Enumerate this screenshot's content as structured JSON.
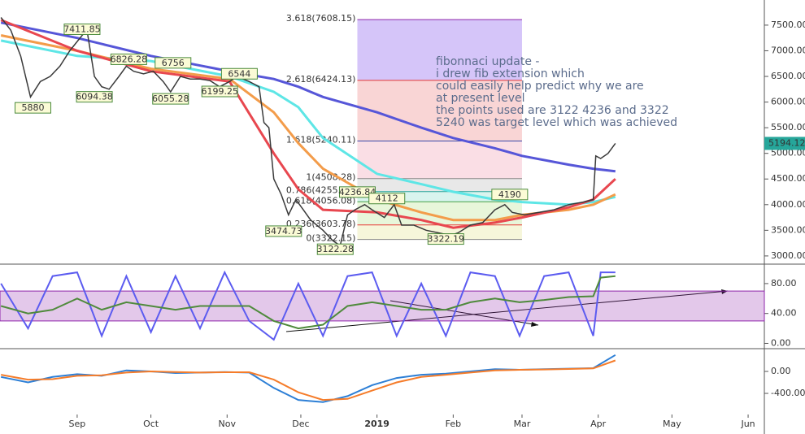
{
  "chart_data": [
    {
      "type": "line",
      "x": [
        -31,
        -27,
        -23,
        -19,
        -15,
        -11,
        -7,
        -3,
        2,
        4,
        7,
        10,
        13,
        17,
        20,
        23,
        27,
        31,
        35,
        38,
        42,
        46,
        50,
        54,
        58,
        62,
        65,
        70,
        74,
        76,
        78,
        80,
        83,
        86,
        89,
        92,
        95,
        100,
        104,
        107,
        110,
        113,
        117,
        120,
        125,
        129,
        132,
        137,
        142,
        147,
        152,
        155,
        160,
        165,
        170,
        174,
        177,
        182,
        188,
        194,
        200,
        206,
        210,
        211,
        213,
        216,
        219
      ],
      "series": [
        {
          "color": "#3a3a3a",
          "values": [
            7650,
            7400,
            6900,
            6100,
            6400,
            6500,
            6700,
            7000,
            7300,
            7400,
            6500,
            6300,
            6250,
            6500,
            6700,
            6600,
            6550,
            6600,
            6400,
            6200,
            6500,
            6450,
            6450,
            6420,
            6300,
            6400,
            6500,
            6400,
            6300,
            5600,
            5500,
            4500,
            4200,
            3800,
            4100,
            3900,
            3700,
            3500,
            3300,
            3200,
            3800,
            3900,
            4000,
            3900,
            3750,
            4000,
            3600,
            3600,
            3500,
            3450,
            3400,
            3450,
            3600,
            3650,
            3900,
            4000,
            3850,
            3800,
            3850,
            3900,
            4000,
            4050,
            4100,
            4950,
            4900,
            5000,
            5194
          ]
        }
      ],
      "ma_x": [
        -31,
        0,
        30,
        62,
        80,
        90,
        100,
        122,
        140,
        153,
        170,
        181,
        200,
        210,
        219
      ],
      "moving_averages": [
        {
          "color": "#5656d8",
          "values": [
            7550,
            7250,
            6900,
            6600,
            6450,
            6300,
            6100,
            5800,
            5500,
            5300,
            5100,
            4950,
            4780,
            4700,
            4650
          ]
        },
        {
          "color": "#5ee6e6",
          "values": [
            7200,
            6900,
            6800,
            6500,
            6200,
            5900,
            5300,
            4600,
            4400,
            4250,
            4100,
            4050,
            4000,
            4050,
            4150
          ]
        },
        {
          "color": "#f39c4a",
          "values": [
            7300,
            7000,
            6650,
            6450,
            5800,
            5200,
            4700,
            4100,
            3850,
            3700,
            3700,
            3800,
            3900,
            4000,
            4200
          ]
        },
        {
          "color": "#e8474f",
          "values": [
            7600,
            7000,
            6600,
            6400,
            5000,
            4300,
            3900,
            3850,
            3700,
            3550,
            3650,
            3750,
            3950,
            4100,
            4500
          ]
        }
      ],
      "price_labels": [
        {
          "x": 2,
          "value": 7411.85
        },
        {
          "x": -18,
          "value": 5880.0
        },
        {
          "x": 7,
          "value": 6094.38
        },
        {
          "x": 21,
          "value": 6826.28
        },
        {
          "x": 39,
          "value": 6756.0
        },
        {
          "x": 38,
          "value": 6055.28
        },
        {
          "x": 58,
          "value": 6199.25
        },
        {
          "x": 66,
          "value": 6544.0
        },
        {
          "x": 84,
          "value": 3474.73
        },
        {
          "x": 105,
          "value": 3122.28
        },
        {
          "x": 114,
          "value": 4236.84
        },
        {
          "x": 126,
          "value": 4112.0
        },
        {
          "x": 150,
          "value": 3322.19
        },
        {
          "x": 176,
          "value": 4190.0
        }
      ],
      "fib_range": [
        114,
        181
      ],
      "fib_levels": [
        {
          "value": 7608.15,
          "label": "3.618(7608.15)",
          "color": "#8e24aa"
        },
        {
          "value": 6424.13,
          "label": "2.618(6424.13)",
          "color": "#e53935"
        },
        {
          "value": 5240.11,
          "label": "1.618(5240.11)",
          "color": "#3949ab"
        },
        {
          "value": 4508.28,
          "label": "1(4508.28)",
          "color": "#888888"
        },
        {
          "value": 4255.0,
          "label": "0.786(4255.00)",
          "color": "#26a69a"
        },
        {
          "value": 4056.08,
          "label": "0.618(4056.08)",
          "color": "#43a047"
        },
        {
          "value": 3603.78,
          "label": "0.236(3603.78)",
          "color": "#e53935"
        },
        {
          "value": 3322.15,
          "label": "0(3322.15)",
          "color": "#888888"
        }
      ],
      "last_price": {
        "value": 5194.12,
        "label": "5194.12"
      },
      "note": [
        "fibonnaci update -",
        "i drew fib extension which",
        "could easily help predict why we are",
        "at present level",
        "the points used are 3122 4236 and 3322",
        "5240 was target level which was achieved"
      ],
      "xlim": [
        -31.4,
        279.6
      ],
      "ylim": [
        2840,
        7990
      ],
      "yticks": [
        {
          "value": 3000,
          "label": "3000.00"
        },
        {
          "value": 3500,
          "label": "3500.00"
        },
        {
          "value": 4000,
          "label": "4000.00"
        },
        {
          "value": 4500,
          "label": "4500.00"
        },
        {
          "value": 5000,
          "label": "5000.00"
        },
        {
          "value": 5500,
          "label": "5500.00"
        },
        {
          "value": 6000,
          "label": "6000.00"
        },
        {
          "value": 6500,
          "label": "6500.00"
        },
        {
          "value": 7000,
          "label": "7000.00"
        },
        {
          "value": 7500,
          "label": "7500.00"
        }
      ]
    },
    {
      "type": "line",
      "x": [
        -31,
        -20,
        -10,
        0,
        10,
        20,
        30,
        40,
        50,
        60,
        70,
        80,
        90,
        100,
        110,
        120,
        130,
        140,
        150,
        160,
        170,
        180,
        190,
        200,
        210,
        213,
        219
      ],
      "series": [
        {
          "color": "#5c5cf0",
          "values": [
            80,
            20,
            90,
            95,
            10,
            90,
            15,
            90,
            20,
            95,
            30,
            5,
            80,
            10,
            90,
            95,
            10,
            80,
            10,
            95,
            90,
            10,
            90,
            95,
            10,
            95,
            95
          ]
        },
        {
          "color": "#4f8a3c",
          "values": [
            50,
            40,
            45,
            60,
            45,
            55,
            50,
            45,
            50,
            50,
            50,
            30,
            20,
            25,
            50,
            55,
            50,
            45,
            45,
            55,
            60,
            55,
            58,
            62,
            63,
            88,
            90
          ]
        }
      ],
      "band": [
        30,
        70
      ],
      "xlim": [
        -31.4,
        279.6
      ],
      "ylim": [
        -6,
        106
      ],
      "yticks": [
        {
          "value": 0,
          "label": "0.00"
        },
        {
          "value": 40,
          "label": "40.00"
        },
        {
          "value": 80,
          "label": "80.00"
        }
      ]
    },
    {
      "type": "line",
      "x": [
        -31,
        -20,
        -10,
        0,
        10,
        20,
        30,
        40,
        50,
        60,
        70,
        80,
        90,
        100,
        110,
        120,
        130,
        140,
        150,
        160,
        170,
        180,
        190,
        200,
        210,
        219
      ],
      "series": [
        {
          "color": "#2d7fd6",
          "values": [
            -100,
            -200,
            -100,
            -50,
            -80,
            20,
            0,
            -30,
            -20,
            -10,
            -20,
            -300,
            -520,
            -560,
            -450,
            -250,
            -120,
            -60,
            -40,
            0,
            40,
            30,
            40,
            50,
            60,
            300
          ]
        },
        {
          "color": "#f57c2a",
          "values": [
            -60,
            -150,
            -140,
            -80,
            -70,
            -20,
            0,
            -10,
            -20,
            -15,
            -15,
            -150,
            -380,
            -520,
            -500,
            -350,
            -200,
            -100,
            -60,
            -20,
            20,
            30,
            35,
            45,
            55,
            200
          ]
        }
      ],
      "xlim": [
        -31.4,
        279.6
      ],
      "ylim": [
        -1140,
        400
      ],
      "yticks": [
        {
          "value": -400,
          "label": "-400.00"
        },
        {
          "value": 0,
          "label": "0.00"
        }
      ],
      "xticks": [
        {
          "value": 0,
          "label": "Sep"
        },
        {
          "value": 30,
          "label": "Oct"
        },
        {
          "value": 61,
          "label": "Nov"
        },
        {
          "value": 91,
          "label": "Dec"
        },
        {
          "value": 122,
          "label": "2019"
        },
        {
          "value": 153,
          "label": "Feb"
        },
        {
          "value": 181,
          "label": "Mar"
        },
        {
          "value": 212,
          "label": "Apr"
        },
        {
          "value": 242,
          "label": "May"
        },
        {
          "value": 273,
          "label": "Jun"
        }
      ]
    }
  ]
}
